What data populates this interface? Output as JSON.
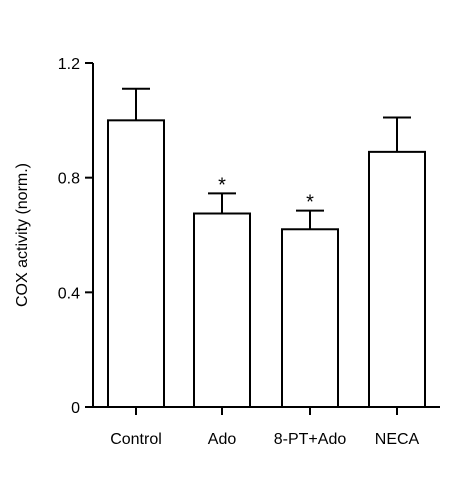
{
  "chart_data": {
    "type": "bar",
    "title": "",
    "xlabel": "",
    "ylabel": "COX activity (norm.)",
    "ylim": [
      0,
      1.2
    ],
    "yticks": [
      0,
      0.4,
      0.8,
      1.2
    ],
    "ytick_labels": [
      "0",
      "0.4",
      "0.8",
      "1.2"
    ],
    "categories": [
      "Control",
      "Ado",
      "8-PT+Ado",
      "NECA"
    ],
    "values": [
      1.0,
      0.675,
      0.62,
      0.89
    ],
    "errors": [
      0.11,
      0.07,
      0.065,
      0.12
    ],
    "significance": [
      "",
      "*",
      "*",
      ""
    ],
    "bar_fill": "#ffffff",
    "bar_stroke": "#000000",
    "grid": false,
    "legend": "none"
  }
}
